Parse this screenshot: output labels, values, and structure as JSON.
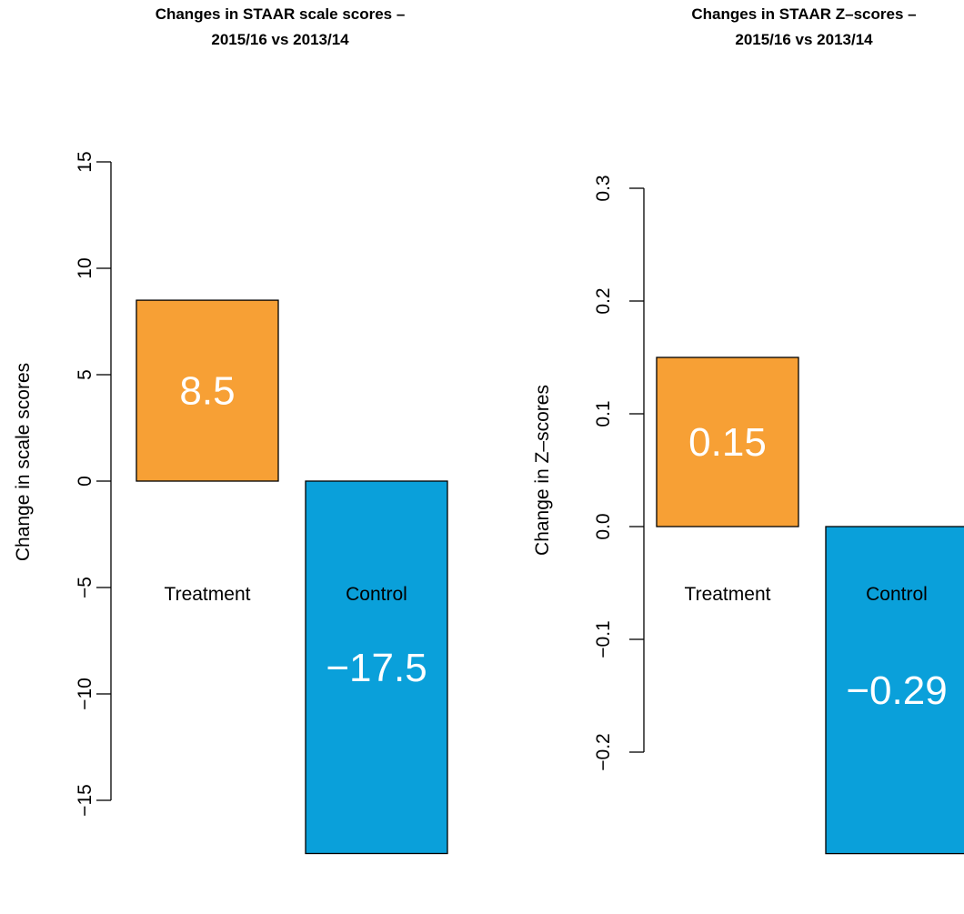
{
  "chart_data": [
    {
      "type": "bar",
      "title": [
        "Changes in STAAR scale scores –",
        "2015/16 vs 2013/14"
      ],
      "ylabel": "Change in scale scores",
      "xlabel": "",
      "categories": [
        "Treatment",
        "Control"
      ],
      "values": [
        8.5,
        -17.5
      ],
      "value_labels": [
        "8.5",
        "−17.5"
      ],
      "colors": [
        "#F7A035",
        "#0AA0DA"
      ],
      "yticks": [
        15,
        10,
        5,
        0,
        -5,
        -10,
        -15
      ],
      "ytick_labels": [
        "15",
        "10",
        "5",
        "0",
        "−5",
        "−10",
        "−15"
      ],
      "ylim": [
        -18.5,
        15.7
      ],
      "grid": false
    },
    {
      "type": "bar",
      "title": [
        "Changes in STAAR Z–scores –",
        "2015/16 vs 2013/14"
      ],
      "ylabel": "Change in Z–scores",
      "xlabel": "",
      "categories": [
        "Treatment",
        "Control"
      ],
      "values": [
        0.15,
        -0.29
      ],
      "value_labels": [
        "0.15",
        "−0.29"
      ],
      "colors": [
        "#F7A035",
        "#0AA0DA"
      ],
      "yticks": [
        0.3,
        0.2,
        0.1,
        0.0,
        -0.1,
        -0.2
      ],
      "ytick_labels": [
        "0.3",
        "0.2",
        "0.1",
        "0.0",
        "−0.1",
        "−0.2"
      ],
      "ylim": [
        -0.318,
        0.318
      ],
      "grid": false
    }
  ]
}
